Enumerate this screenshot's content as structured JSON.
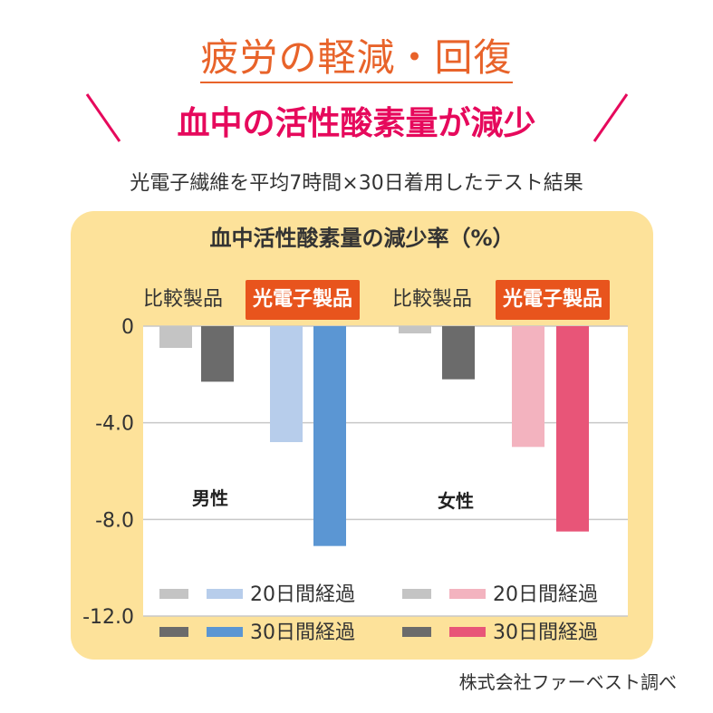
{
  "heading": "疲労の軽減・回復",
  "subheading": "血中の活性酸素量が減少",
  "note": "光電子繊維を平均7時間×30日着用したテスト結果",
  "source": "株式会社ファーベスト調べ",
  "colors": {
    "heading": "#e8632a",
    "subheading": "#e6095c",
    "panel": "#fde29a",
    "brand_box": "#e8541d",
    "compare_20": "#c4c4c4",
    "compare_30": "#6b6b6b",
    "men_20": "#b7cdeb",
    "men_30": "#5b96d3",
    "women_20": "#f3b3bf",
    "women_30": "#e85578"
  },
  "chart_data": {
    "type": "bar",
    "title": "血中活性酸素量の減少率（%）",
    "ylim": [
      -12.0,
      0
    ],
    "yticks": [
      "0",
      "-4.0",
      "-8.0",
      "-12.0"
    ],
    "ytick_values": [
      0,
      -4.0,
      -8.0,
      -12.0
    ],
    "grid": true,
    "groups": [
      {
        "name": "男性",
        "categories": [
          {
            "label": "比較製品",
            "style": "plain",
            "values": [
              -0.9,
              -2.3
            ]
          },
          {
            "label": "光電子製品",
            "style": "brand",
            "values": [
              -4.8,
              -9.1
            ]
          }
        ]
      },
      {
        "name": "女性",
        "categories": [
          {
            "label": "比較製品",
            "style": "plain",
            "values": [
              -0.3,
              -2.2
            ]
          },
          {
            "label": "光電子製品",
            "style": "brand",
            "values": [
              -5.0,
              -8.5
            ]
          }
        ]
      }
    ],
    "series_names": [
      "20日間経過",
      "30日間経過"
    ],
    "legend": [
      {
        "group": "男性",
        "rows": [
          {
            "label": "20日間経過",
            "colors": [
              "#c4c4c4",
              "#b7cdeb"
            ]
          },
          {
            "label": "30日間経過",
            "colors": [
              "#6b6b6b",
              "#5b96d3"
            ]
          }
        ]
      },
      {
        "group": "女性",
        "rows": [
          {
            "label": "20日間経過",
            "colors": [
              "#c4c4c4",
              "#f3b3bf"
            ]
          },
          {
            "label": "30日間経過",
            "colors": [
              "#6b6b6b",
              "#e85578"
            ]
          }
        ]
      }
    ],
    "legend_position": "bottom"
  }
}
